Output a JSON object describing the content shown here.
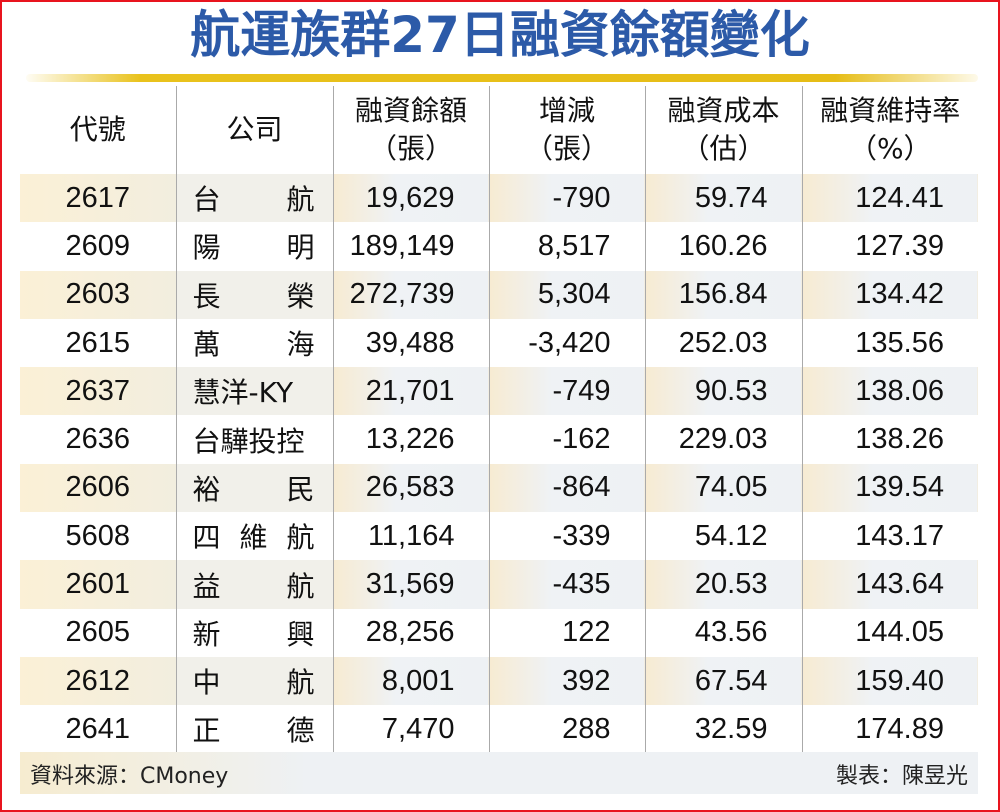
{
  "title": "航運族群27日融資餘額變化",
  "colors": {
    "title": "#2c5aa8",
    "frame": "#e8141e",
    "gold_bar": "#e6bd16"
  },
  "table": {
    "headers": [
      {
        "line1": "代號",
        "line2": ""
      },
      {
        "line1": "公司",
        "line2": ""
      },
      {
        "line1": "融資餘額",
        "line2": "（張）"
      },
      {
        "line1": "增減",
        "line2": "（張）"
      },
      {
        "line1": "融資成本",
        "line2": "（估）"
      },
      {
        "line1": "融資維持率",
        "line2": "（%）"
      }
    ],
    "rows": [
      {
        "code": "2617",
        "name": [
          "台",
          "航"
        ],
        "balance": "19,629",
        "change": "-790",
        "cost": "59.74",
        "ratio": "124.41"
      },
      {
        "code": "2609",
        "name": [
          "陽",
          "明"
        ],
        "balance": "189,149",
        "change": "8,517",
        "cost": "160.26",
        "ratio": "127.39"
      },
      {
        "code": "2603",
        "name": [
          "長",
          "榮"
        ],
        "balance": "272,739",
        "change": "5,304",
        "cost": "156.84",
        "ratio": "134.42"
      },
      {
        "code": "2615",
        "name": [
          "萬",
          "海"
        ],
        "balance": "39,488",
        "change": "-3,420",
        "cost": "252.03",
        "ratio": "135.56"
      },
      {
        "code": "2637",
        "name": [
          "慧洋-KY"
        ],
        "balance": "21,701",
        "change": "-749",
        "cost": "90.53",
        "ratio": "138.06"
      },
      {
        "code": "2636",
        "name": [
          "台驊投控"
        ],
        "balance": "13,226",
        "change": "-162",
        "cost": "229.03",
        "ratio": "138.26"
      },
      {
        "code": "2606",
        "name": [
          "裕",
          "民"
        ],
        "balance": "26,583",
        "change": "-864",
        "cost": "74.05",
        "ratio": "139.54"
      },
      {
        "code": "5608",
        "name": [
          "四",
          "維",
          "航"
        ],
        "balance": "11,164",
        "change": "-339",
        "cost": "54.12",
        "ratio": "143.17"
      },
      {
        "code": "2601",
        "name": [
          "益",
          "航"
        ],
        "balance": "31,569",
        "change": "-435",
        "cost": "20.53",
        "ratio": "143.64"
      },
      {
        "code": "2605",
        "name": [
          "新",
          "興"
        ],
        "balance": "28,256",
        "change": "122",
        "cost": "43.56",
        "ratio": "144.05"
      },
      {
        "code": "2612",
        "name": [
          "中",
          "航"
        ],
        "balance": "8,001",
        "change": "392",
        "cost": "67.54",
        "ratio": "159.40"
      },
      {
        "code": "2641",
        "name": [
          "正",
          "德"
        ],
        "balance": "7,470",
        "change": "288",
        "cost": "32.59",
        "ratio": "174.89"
      }
    ]
  },
  "footer": {
    "source": "資料來源：CMoney",
    "maker": "製表：陳昱光"
  },
  "chart_data": {
    "type": "table",
    "title": "航運族群27日融資餘額變化",
    "columns": [
      "代號",
      "公司",
      "融資餘額（張）",
      "增減（張）",
      "融資成本（估）",
      "融資維持率（%）"
    ],
    "rows": [
      [
        "2617",
        "台航",
        19629,
        -790,
        59.74,
        124.41
      ],
      [
        "2609",
        "陽明",
        189149,
        8517,
        160.26,
        127.39
      ],
      [
        "2603",
        "長榮",
        272739,
        5304,
        156.84,
        134.42
      ],
      [
        "2615",
        "萬海",
        39488,
        -3420,
        252.03,
        135.56
      ],
      [
        "2637",
        "慧洋-KY",
        21701,
        -749,
        90.53,
        138.06
      ],
      [
        "2636",
        "台驊投控",
        13226,
        -162,
        229.03,
        138.26
      ],
      [
        "2606",
        "裕民",
        26583,
        -864,
        74.05,
        139.54
      ],
      [
        "5608",
        "四維航",
        11164,
        -339,
        54.12,
        143.17
      ],
      [
        "2601",
        "益航",
        31569,
        -435,
        20.53,
        143.64
      ],
      [
        "2605",
        "新興",
        28256,
        122,
        43.56,
        144.05
      ],
      [
        "2612",
        "中航",
        8001,
        392,
        67.54,
        159.4
      ],
      [
        "2641",
        "正德",
        7470,
        288,
        32.59,
        174.89
      ]
    ],
    "source": "CMoney",
    "maker": "陳昱光"
  }
}
